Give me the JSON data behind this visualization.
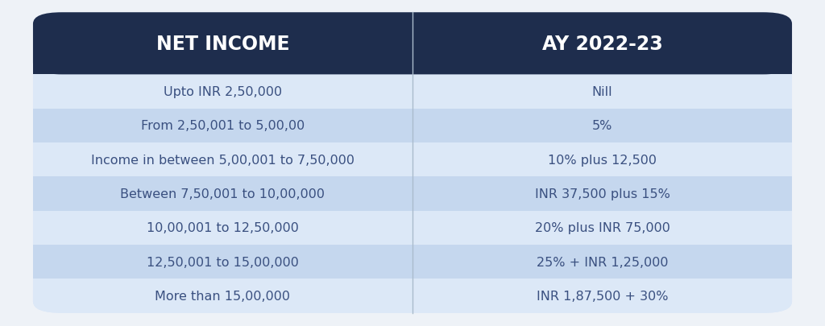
{
  "header": [
    "NET INCOME",
    "AY 2022-23"
  ],
  "rows": [
    [
      "Upto INR 2,50,000",
      "Nill"
    ],
    [
      "From 2,50,001 to 5,00,00",
      "5%"
    ],
    [
      "Income in between 5,00,001 to 7,50,000",
      "10% plus 12,500"
    ],
    [
      "Between 7,50,001 to 10,00,000",
      "INR 37,500 plus 15%"
    ],
    [
      "10,00,001 to 12,50,000",
      "20% plus INR 75,000"
    ],
    [
      "12,50,001 to 15,00,000",
      "25% + INR 1,25,000"
    ],
    [
      "More than 15,00,000",
      "INR 1,87,500 + 30%"
    ]
  ],
  "header_bg": "#1e2d4d",
  "header_text_color": "#ffffff",
  "row_bg_light": "#dce8f7",
  "row_bg_dark": "#c5d7ee",
  "row_text_color": "#3a5080",
  "divider_color": "#aabbcc",
  "fig_bg": "#eef2f7",
  "col_split": 0.5,
  "header_fontsize": 17,
  "row_fontsize": 11.5
}
